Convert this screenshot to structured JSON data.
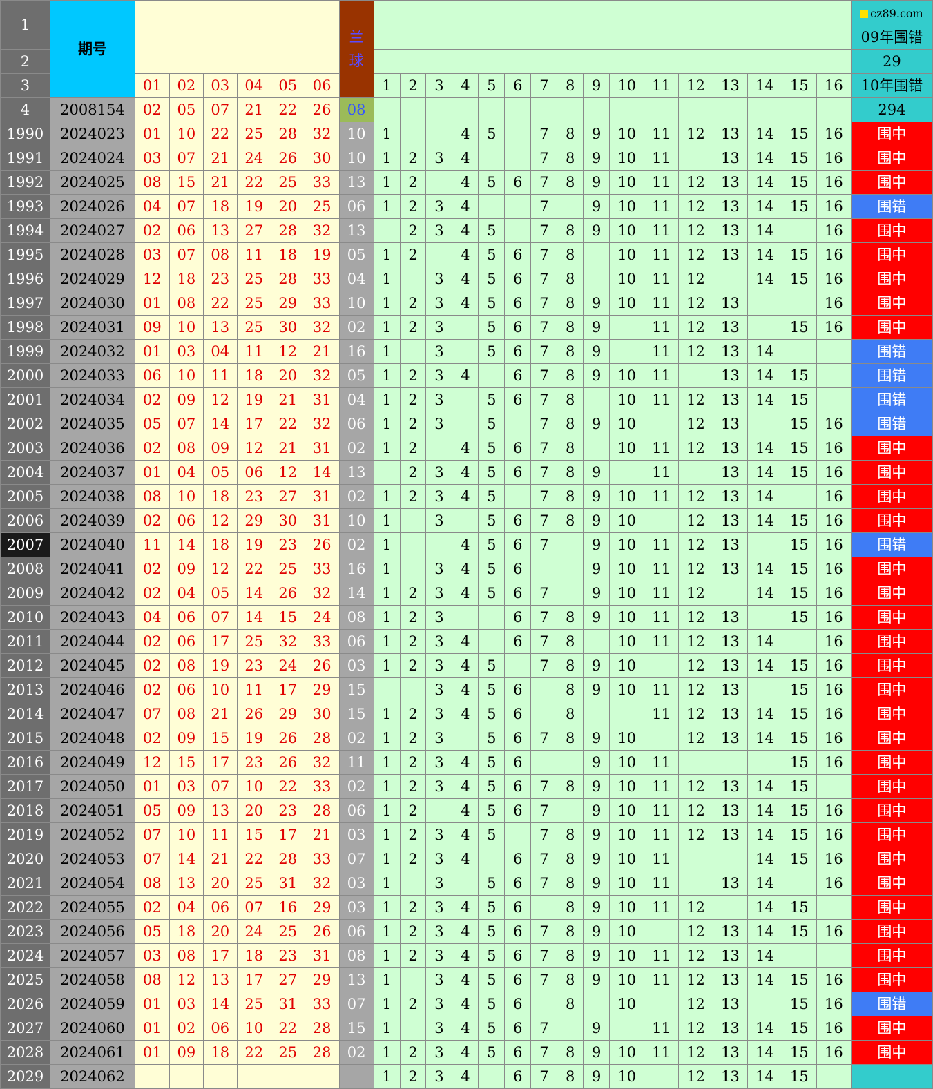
{
  "header": {
    "row_numbers": [
      "1",
      "2",
      "3",
      "4"
    ],
    "issue_title": "期号",
    "red_labels": [
      "01",
      "02",
      "03",
      "04",
      "05",
      "06"
    ],
    "blue_title": "兰球",
    "grid_labels": [
      "1",
      "2",
      "3",
      "4",
      "5",
      "6",
      "7",
      "8",
      "9",
      "10",
      "11",
      "12",
      "13",
      "14",
      "15",
      "16"
    ],
    "stat1_label": "09年围错",
    "stat1_value": "29",
    "stat2_label": "10年围错",
    "stat2_value": "294",
    "watermark": "cz89.com",
    "sample_issue": "2008154",
    "sample_reds": [
      "02",
      "05",
      "07",
      "21",
      "22",
      "26"
    ],
    "sample_blue": "08"
  },
  "colors": {
    "hit": "#ff0000",
    "miss": "#3f7cf5",
    "grid": "#cfffd3",
    "red_text": "#e00000",
    "issue_header": "#00c8ff"
  },
  "rows": [
    {
      "rn": "1990",
      "issue": "2024023",
      "reds": [
        "01",
        "10",
        "22",
        "25",
        "28",
        "32"
      ],
      "blue": "10",
      "grid": [
        "1",
        "",
        "",
        "4",
        "5",
        "",
        "7",
        "8",
        "9",
        "10",
        "11",
        "12",
        "13",
        "14",
        "15",
        "16"
      ],
      "result": "围中"
    },
    {
      "rn": "1991",
      "issue": "2024024",
      "reds": [
        "03",
        "07",
        "21",
        "24",
        "26",
        "30"
      ],
      "blue": "10",
      "grid": [
        "1",
        "2",
        "3",
        "4",
        "",
        "",
        "7",
        "8",
        "9",
        "10",
        "11",
        "",
        "13",
        "14",
        "15",
        "16"
      ],
      "result": "围中"
    },
    {
      "rn": "1992",
      "issue": "2024025",
      "reds": [
        "08",
        "15",
        "21",
        "22",
        "25",
        "33"
      ],
      "blue": "13",
      "grid": [
        "1",
        "2",
        "",
        "4",
        "5",
        "6",
        "7",
        "8",
        "9",
        "10",
        "11",
        "12",
        "13",
        "14",
        "15",
        "16"
      ],
      "result": "围中"
    },
    {
      "rn": "1993",
      "issue": "2024026",
      "reds": [
        "04",
        "07",
        "18",
        "19",
        "20",
        "25"
      ],
      "blue": "06",
      "grid": [
        "1",
        "2",
        "3",
        "4",
        "",
        "",
        "7",
        "",
        "9",
        "10",
        "11",
        "12",
        "13",
        "14",
        "15",
        "16"
      ],
      "result": "围错"
    },
    {
      "rn": "1994",
      "issue": "2024027",
      "reds": [
        "02",
        "06",
        "13",
        "27",
        "28",
        "32"
      ],
      "blue": "13",
      "grid": [
        "",
        "2",
        "3",
        "4",
        "5",
        "",
        "7",
        "8",
        "9",
        "10",
        "11",
        "12",
        "13",
        "14",
        "",
        "16"
      ],
      "result": "围中"
    },
    {
      "rn": "1995",
      "issue": "2024028",
      "reds": [
        "03",
        "07",
        "08",
        "11",
        "18",
        "19"
      ],
      "blue": "05",
      "grid": [
        "1",
        "2",
        "",
        "4",
        "5",
        "6",
        "7",
        "8",
        "",
        "10",
        "11",
        "12",
        "13",
        "14",
        "15",
        "16"
      ],
      "result": "围中"
    },
    {
      "rn": "1996",
      "issue": "2024029",
      "reds": [
        "12",
        "18",
        "23",
        "25",
        "28",
        "33"
      ],
      "blue": "04",
      "grid": [
        "1",
        "",
        "3",
        "4",
        "5",
        "6",
        "7",
        "8",
        "",
        "10",
        "11",
        "12",
        "",
        "14",
        "15",
        "16"
      ],
      "result": "围中"
    },
    {
      "rn": "1997",
      "issue": "2024030",
      "reds": [
        "01",
        "08",
        "22",
        "25",
        "29",
        "33"
      ],
      "blue": "10",
      "grid": [
        "1",
        "2",
        "3",
        "4",
        "5",
        "6",
        "7",
        "8",
        "9",
        "10",
        "11",
        "12",
        "13",
        "",
        "",
        "16"
      ],
      "result": "围中"
    },
    {
      "rn": "1998",
      "issue": "2024031",
      "reds": [
        "09",
        "10",
        "13",
        "25",
        "30",
        "32"
      ],
      "blue": "02",
      "grid": [
        "1",
        "2",
        "3",
        "",
        "5",
        "6",
        "7",
        "8",
        "9",
        "",
        "11",
        "12",
        "13",
        "",
        "15",
        "16"
      ],
      "result": "围中"
    },
    {
      "rn": "1999",
      "issue": "2024032",
      "reds": [
        "01",
        "03",
        "04",
        "11",
        "12",
        "21"
      ],
      "blue": "16",
      "grid": [
        "1",
        "",
        "3",
        "",
        "5",
        "6",
        "7",
        "8",
        "9",
        "",
        "11",
        "12",
        "13",
        "14",
        "",
        ""
      ],
      "result": "围错"
    },
    {
      "rn": "2000",
      "issue": "2024033",
      "reds": [
        "06",
        "10",
        "11",
        "18",
        "20",
        "32"
      ],
      "blue": "05",
      "grid": [
        "1",
        "2",
        "3",
        "4",
        "",
        "6",
        "7",
        "8",
        "9",
        "10",
        "11",
        "",
        "13",
        "14",
        "15",
        ""
      ],
      "result": "围错"
    },
    {
      "rn": "2001",
      "issue": "2024034",
      "reds": [
        "02",
        "09",
        "12",
        "19",
        "21",
        "31"
      ],
      "blue": "04",
      "grid": [
        "1",
        "2",
        "3",
        "",
        "5",
        "6",
        "7",
        "8",
        "",
        "10",
        "11",
        "12",
        "13",
        "14",
        "15",
        ""
      ],
      "result": "围错"
    },
    {
      "rn": "2002",
      "issue": "2024035",
      "reds": [
        "05",
        "07",
        "14",
        "17",
        "22",
        "32"
      ],
      "blue": "06",
      "grid": [
        "1",
        "2",
        "3",
        "",
        "5",
        "",
        "7",
        "8",
        "9",
        "10",
        "",
        "12",
        "13",
        "",
        "15",
        "16"
      ],
      "result": "围错"
    },
    {
      "rn": "2003",
      "issue": "2024036",
      "reds": [
        "02",
        "08",
        "09",
        "12",
        "21",
        "31"
      ],
      "blue": "02",
      "grid": [
        "1",
        "2",
        "",
        "4",
        "5",
        "6",
        "7",
        "8",
        "",
        "10",
        "11",
        "12",
        "13",
        "14",
        "15",
        "16"
      ],
      "result": "围中"
    },
    {
      "rn": "2004",
      "issue": "2024037",
      "reds": [
        "01",
        "04",
        "05",
        "06",
        "12",
        "14"
      ],
      "blue": "13",
      "grid": [
        "",
        "2",
        "3",
        "4",
        "5",
        "6",
        "7",
        "8",
        "9",
        "",
        "11",
        "",
        "13",
        "14",
        "15",
        "16"
      ],
      "result": "围中"
    },
    {
      "rn": "2005",
      "issue": "2024038",
      "reds": [
        "08",
        "10",
        "18",
        "23",
        "27",
        "31"
      ],
      "blue": "02",
      "grid": [
        "1",
        "2",
        "3",
        "4",
        "5",
        "",
        "7",
        "8",
        "9",
        "10",
        "11",
        "12",
        "13",
        "14",
        "",
        "16"
      ],
      "result": "围中"
    },
    {
      "rn": "2006",
      "issue": "2024039",
      "reds": [
        "02",
        "06",
        "12",
        "29",
        "30",
        "31"
      ],
      "blue": "10",
      "grid": [
        "1",
        "",
        "3",
        "",
        "5",
        "6",
        "7",
        "8",
        "9",
        "10",
        "",
        "12",
        "13",
        "14",
        "15",
        "16"
      ],
      "result": "围中"
    },
    {
      "rn": "2007",
      "issue": "2024040",
      "reds": [
        "11",
        "14",
        "18",
        "19",
        "23",
        "26"
      ],
      "blue": "02",
      "grid": [
        "1",
        "",
        "",
        "4",
        "5",
        "6",
        "7",
        "",
        "9",
        "10",
        "11",
        "12",
        "13",
        "",
        "15",
        "16"
      ],
      "result": "围错"
    },
    {
      "rn": "2008",
      "issue": "2024041",
      "reds": [
        "02",
        "09",
        "12",
        "22",
        "25",
        "33"
      ],
      "blue": "16",
      "grid": [
        "1",
        "",
        "3",
        "4",
        "5",
        "6",
        "",
        "",
        "9",
        "10",
        "11",
        "12",
        "13",
        "14",
        "15",
        "16"
      ],
      "result": "围中"
    },
    {
      "rn": "2009",
      "issue": "2024042",
      "reds": [
        "02",
        "04",
        "05",
        "14",
        "26",
        "32"
      ],
      "blue": "14",
      "grid": [
        "1",
        "2",
        "3",
        "4",
        "5",
        "6",
        "7",
        "",
        "9",
        "10",
        "11",
        "12",
        "",
        "14",
        "15",
        "16"
      ],
      "result": "围中"
    },
    {
      "rn": "2010",
      "issue": "2024043",
      "reds": [
        "04",
        "06",
        "07",
        "14",
        "15",
        "24"
      ],
      "blue": "08",
      "grid": [
        "1",
        "2",
        "3",
        "",
        "",
        "6",
        "7",
        "8",
        "9",
        "10",
        "11",
        "12",
        "13",
        "",
        "15",
        "16"
      ],
      "result": "围中"
    },
    {
      "rn": "2011",
      "issue": "2024044",
      "reds": [
        "02",
        "06",
        "17",
        "25",
        "32",
        "33"
      ],
      "blue": "06",
      "grid": [
        "1",
        "2",
        "3",
        "4",
        "",
        "6",
        "7",
        "8",
        "",
        "10",
        "11",
        "12",
        "13",
        "14",
        "",
        "16"
      ],
      "result": "围中"
    },
    {
      "rn": "2012",
      "issue": "2024045",
      "reds": [
        "02",
        "08",
        "19",
        "23",
        "24",
        "26"
      ],
      "blue": "03",
      "grid": [
        "1",
        "2",
        "3",
        "4",
        "5",
        "",
        "7",
        "8",
        "9",
        "10",
        "",
        "12",
        "13",
        "14",
        "15",
        "16"
      ],
      "result": "围中"
    },
    {
      "rn": "2013",
      "issue": "2024046",
      "reds": [
        "02",
        "06",
        "10",
        "11",
        "17",
        "29"
      ],
      "blue": "15",
      "grid": [
        "",
        "",
        "3",
        "4",
        "5",
        "6",
        "",
        "8",
        "9",
        "10",
        "11",
        "12",
        "13",
        "",
        "15",
        "16"
      ],
      "result": "围中"
    },
    {
      "rn": "2014",
      "issue": "2024047",
      "reds": [
        "07",
        "08",
        "21",
        "26",
        "29",
        "30"
      ],
      "blue": "15",
      "grid": [
        "1",
        "2",
        "3",
        "4",
        "5",
        "6",
        "",
        "8",
        "",
        "",
        "11",
        "12",
        "13",
        "14",
        "15",
        "16"
      ],
      "result": "围中"
    },
    {
      "rn": "2015",
      "issue": "2024048",
      "reds": [
        "02",
        "09",
        "15",
        "19",
        "26",
        "28"
      ],
      "blue": "02",
      "grid": [
        "1",
        "2",
        "3",
        "",
        "5",
        "6",
        "7",
        "8",
        "9",
        "10",
        "",
        "12",
        "13",
        "14",
        "15",
        "16"
      ],
      "result": "围中"
    },
    {
      "rn": "2016",
      "issue": "2024049",
      "reds": [
        "12",
        "15",
        "17",
        "23",
        "26",
        "32"
      ],
      "blue": "11",
      "grid": [
        "1",
        "2",
        "3",
        "4",
        "5",
        "6",
        "",
        "",
        "9",
        "10",
        "11",
        "",
        "",
        "",
        "15",
        "16"
      ],
      "result": "围中"
    },
    {
      "rn": "2017",
      "issue": "2024050",
      "reds": [
        "01",
        "03",
        "07",
        "10",
        "22",
        "33"
      ],
      "blue": "02",
      "grid": [
        "1",
        "2",
        "3",
        "4",
        "5",
        "6",
        "7",
        "8",
        "9",
        "10",
        "11",
        "12",
        "13",
        "14",
        "15",
        ""
      ],
      "result": "围中"
    },
    {
      "rn": "2018",
      "issue": "2024051",
      "reds": [
        "05",
        "09",
        "13",
        "20",
        "23",
        "28"
      ],
      "blue": "06",
      "grid": [
        "1",
        "2",
        "",
        "4",
        "5",
        "6",
        "7",
        "",
        "9",
        "10",
        "11",
        "12",
        "13",
        "14",
        "15",
        "16"
      ],
      "result": "围中"
    },
    {
      "rn": "2019",
      "issue": "2024052",
      "reds": [
        "07",
        "10",
        "11",
        "15",
        "17",
        "21"
      ],
      "blue": "03",
      "grid": [
        "1",
        "2",
        "3",
        "4",
        "5",
        "",
        "7",
        "8",
        "9",
        "10",
        "11",
        "12",
        "13",
        "14",
        "15",
        "16"
      ],
      "result": "围中"
    },
    {
      "rn": "2020",
      "issue": "2024053",
      "reds": [
        "07",
        "14",
        "21",
        "22",
        "28",
        "33"
      ],
      "blue": "07",
      "grid": [
        "1",
        "2",
        "3",
        "4",
        "",
        "6",
        "7",
        "8",
        "9",
        "10",
        "11",
        "",
        "",
        "14",
        "15",
        "16"
      ],
      "result": "围中"
    },
    {
      "rn": "2021",
      "issue": "2024054",
      "reds": [
        "08",
        "13",
        "20",
        "25",
        "31",
        "32"
      ],
      "blue": "03",
      "grid": [
        "1",
        "",
        "3",
        "",
        "5",
        "6",
        "7",
        "8",
        "9",
        "10",
        "11",
        "",
        "13",
        "14",
        "",
        "16"
      ],
      "result": "围中"
    },
    {
      "rn": "2022",
      "issue": "2024055",
      "reds": [
        "02",
        "04",
        "06",
        "07",
        "16",
        "29"
      ],
      "blue": "03",
      "grid": [
        "1",
        "2",
        "3",
        "4",
        "5",
        "6",
        "",
        "8",
        "9",
        "10",
        "11",
        "12",
        "",
        "14",
        "15",
        ""
      ],
      "result": "围中"
    },
    {
      "rn": "2023",
      "issue": "2024056",
      "reds": [
        "05",
        "18",
        "20",
        "24",
        "25",
        "26"
      ],
      "blue": "06",
      "grid": [
        "1",
        "2",
        "3",
        "4",
        "5",
        "6",
        "7",
        "8",
        "9",
        "10",
        "",
        "12",
        "13",
        "14",
        "15",
        "16"
      ],
      "result": "围中"
    },
    {
      "rn": "2024",
      "issue": "2024057",
      "reds": [
        "03",
        "08",
        "17",
        "18",
        "23",
        "31"
      ],
      "blue": "08",
      "grid": [
        "1",
        "2",
        "3",
        "4",
        "5",
        "6",
        "7",
        "8",
        "9",
        "10",
        "11",
        "12",
        "13",
        "14",
        "",
        ""
      ],
      "result": "围中"
    },
    {
      "rn": "2025",
      "issue": "2024058",
      "reds": [
        "08",
        "12",
        "13",
        "17",
        "27",
        "29"
      ],
      "blue": "13",
      "grid": [
        "1",
        "",
        "3",
        "4",
        "5",
        "6",
        "7",
        "8",
        "9",
        "10",
        "11",
        "12",
        "13",
        "14",
        "15",
        "16"
      ],
      "result": "围中"
    },
    {
      "rn": "2026",
      "issue": "2024059",
      "reds": [
        "01",
        "03",
        "14",
        "25",
        "31",
        "33"
      ],
      "blue": "07",
      "grid": [
        "1",
        "2",
        "3",
        "4",
        "5",
        "6",
        "",
        "8",
        "",
        "10",
        "",
        "12",
        "13",
        "",
        "15",
        "16"
      ],
      "result": "围错"
    },
    {
      "rn": "2027",
      "issue": "2024060",
      "reds": [
        "01",
        "02",
        "06",
        "10",
        "22",
        "28"
      ],
      "blue": "15",
      "grid": [
        "1",
        "",
        "3",
        "4",
        "5",
        "6",
        "7",
        "",
        "9",
        "",
        "11",
        "12",
        "13",
        "14",
        "15",
        "16"
      ],
      "result": "围中"
    },
    {
      "rn": "2028",
      "issue": "2024061",
      "reds": [
        "01",
        "09",
        "18",
        "22",
        "25",
        "28"
      ],
      "blue": "02",
      "grid": [
        "1",
        "2",
        "3",
        "4",
        "5",
        "6",
        "7",
        "8",
        "9",
        "10",
        "11",
        "12",
        "13",
        "14",
        "15",
        "16"
      ],
      "result": "围中"
    },
    {
      "rn": "2029",
      "issue": "2024062",
      "reds": [
        "",
        "",
        "",
        "",
        "",
        ""
      ],
      "blue": "",
      "grid": [
        "1",
        "2",
        "3",
        "4",
        "",
        "6",
        "7",
        "8",
        "9",
        "10",
        "",
        "12",
        "13",
        "14",
        "15",
        ""
      ],
      "result": ""
    }
  ]
}
